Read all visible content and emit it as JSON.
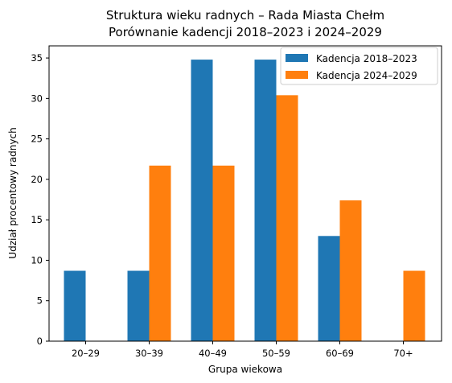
{
  "chart_data": {
    "type": "bar",
    "title": "Struktura wieku radnych – Rada Miasta Chełm",
    "subtitle": "Porównanie kadencji 2018–2023 i 2024–2029",
    "xlabel": "Grupa wiekowa",
    "ylabel": "Udział procentowy radnych",
    "categories": [
      "20–29",
      "30–39",
      "40–49",
      "50–59",
      "60–69",
      "70+"
    ],
    "series": [
      {
        "name": "Kadencja 2018–2023",
        "color": "#1f77b4",
        "values": [
          8.7,
          8.7,
          34.8,
          34.8,
          13.0,
          0.0
        ]
      },
      {
        "name": "Kadencja 2024–2029",
        "color": "#ff7f0e",
        "values": [
          0.0,
          21.7,
          21.7,
          30.4,
          17.4,
          8.7
        ]
      }
    ],
    "ylim": [
      0,
      36.5
    ],
    "yticks": [
      0,
      5,
      10,
      15,
      20,
      25,
      30,
      35
    ],
    "grid": false,
    "legend_position": "top-right"
  }
}
